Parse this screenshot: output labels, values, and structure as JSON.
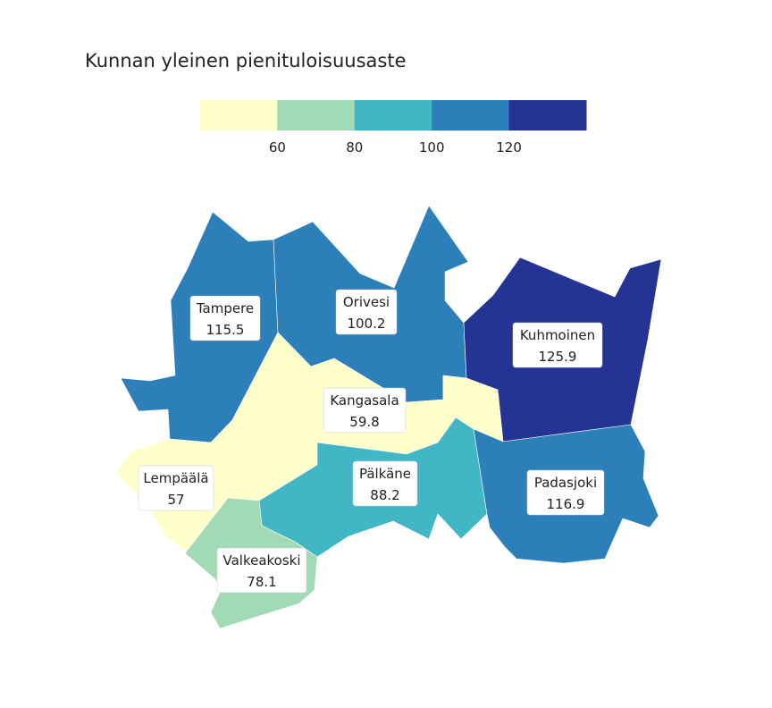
{
  "title": "Kunnan yleinen pienituloisuusaste",
  "legend": {
    "bins": [
      {
        "color": "#ffffcc"
      },
      {
        "color": "#a1dab4"
      },
      {
        "color": "#41b6c4"
      },
      {
        "color": "#2c7fb8"
      },
      {
        "color": "#253494"
      }
    ],
    "ticks": [
      "60",
      "80",
      "100",
      "120"
    ]
  },
  "chart_data": {
    "type": "choropleth",
    "title": "Kunnan yleinen pienituloisuusaste",
    "breaks": [
      60,
      80,
      100,
      120
    ],
    "regions": [
      {
        "name": "Tampere",
        "value": 115.5,
        "value_label": "115.5",
        "color": "#2c7fb8"
      },
      {
        "name": "Orivesi",
        "value": 100.2,
        "value_label": "100.2",
        "color": "#2c7fb8"
      },
      {
        "name": "Kuhmoinen",
        "value": 125.9,
        "value_label": "125.9",
        "color": "#253494"
      },
      {
        "name": "Kangasala",
        "value": 59.8,
        "value_label": "59.8",
        "color": "#ffffcc"
      },
      {
        "name": "Lempäälä",
        "value": 57,
        "value_label": "57",
        "color": "#ffffcc"
      },
      {
        "name": "Pälkäne",
        "value": 88.2,
        "value_label": "88.2",
        "color": "#41b6c4"
      },
      {
        "name": "Padasjoki",
        "value": 116.9,
        "value_label": "116.9",
        "color": "#2c7fb8"
      },
      {
        "name": "Valkeakoski",
        "value": 78.1,
        "value_label": "78.1",
        "color": "#a1dab4"
      }
    ]
  }
}
